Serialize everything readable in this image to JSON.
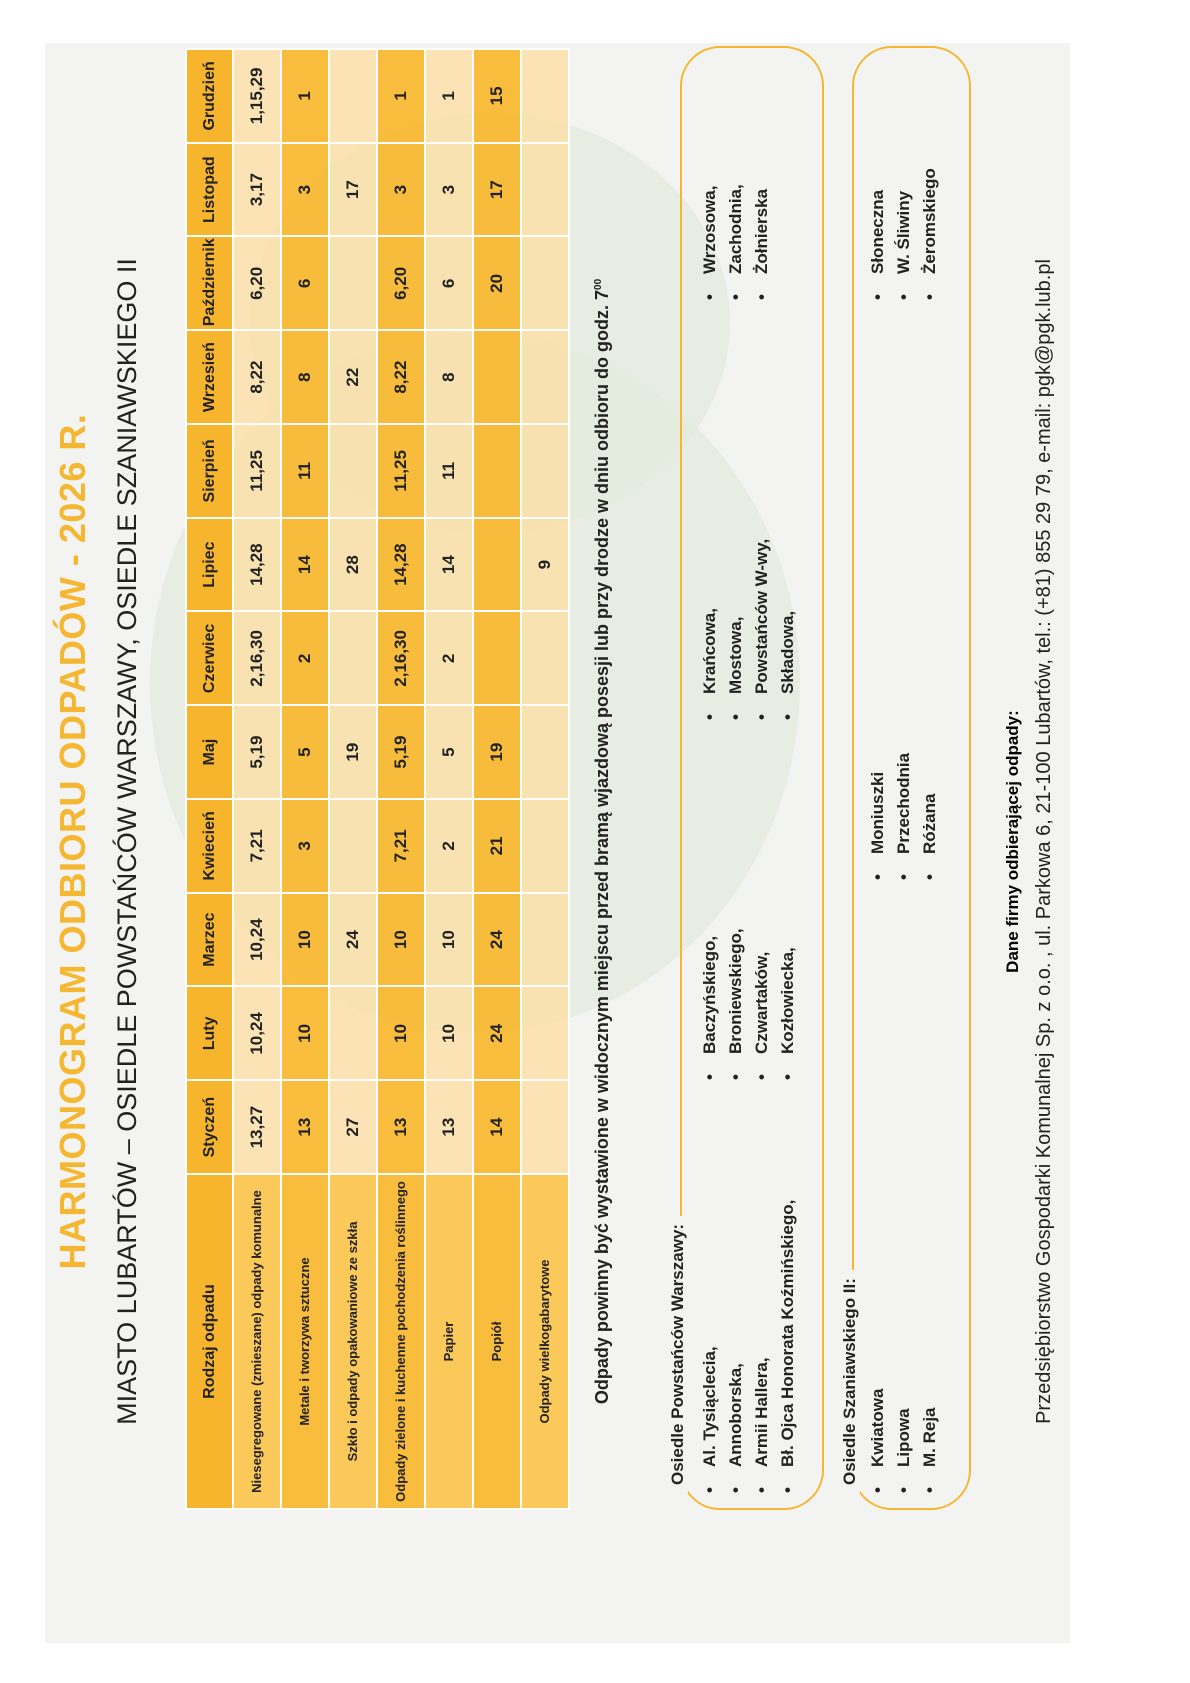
{
  "header": {
    "title": "HARMONOGRAM ODBIORU ODPADÓW - 2026 R.",
    "subtitle": "MIASTO LUBARTÓW – OSIEDLE POWSTAŃCÓW WARSZAWY, OSIEDLE SZANIAWSKIEGO II"
  },
  "table": {
    "columns": [
      "Rodzaj odpadu",
      "Styczeń",
      "Luty",
      "Marzec",
      "Kwiecień",
      "Maj",
      "Czerwiec",
      "Lipiec",
      "Sierpień",
      "Wrzesień",
      "Październik",
      "Listopad",
      "Grudzień"
    ],
    "rows": [
      [
        "Niesegregowane (zmieszane) odpady komunalne",
        "13,27",
        "10,24",
        "10,24",
        "7,21",
        "5,19",
        "2,16,30",
        "14,28",
        "11,25",
        "8,22",
        "6,20",
        "3,17",
        "1,15,29"
      ],
      [
        "Metale i tworzywa sztuczne",
        "13",
        "10",
        "10",
        "3",
        "5",
        "2",
        "14",
        "11",
        "8",
        "6",
        "3",
        "1"
      ],
      [
        "Szkło i odpady opakowaniowe ze szkła",
        "27",
        null,
        "24",
        null,
        "19",
        null,
        "28",
        null,
        "22",
        null,
        "17",
        null
      ],
      [
        "Odpady zielone i kuchenne pochodzenia roślinnego",
        "13",
        "10",
        "10",
        "7,21",
        "5,19",
        "2,16,30",
        "14,28",
        "11,25",
        "8,22",
        "6,20",
        "3",
        "1"
      ],
      [
        "Papier",
        "13",
        "10",
        "10",
        "2",
        "5",
        "2",
        "14",
        "11",
        "8",
        "6",
        "3",
        "1"
      ],
      [
        "Popiół",
        "14",
        "24",
        "24",
        "21",
        "19",
        null,
        null,
        null,
        null,
        "20",
        "17",
        "15"
      ],
      [
        "Odpady wielkogabarytowe",
        null,
        null,
        null,
        null,
        null,
        null,
        "9",
        null,
        null,
        null,
        null,
        null
      ]
    ]
  },
  "note": {
    "text": "Odpady powinny być wystawione w widocznym miejscu przed bramą wjazdową posesji lub przy drodze w dniu odbioru do godz. 7",
    "sup": "00"
  },
  "areas": [
    {
      "label": "Osiedle Powstańców Warszawy:",
      "columns": [
        [
          "Al. Tysiąclecia,",
          "Annoborska,",
          "Armii Hallera,",
          "Bł. Ojca Honorata Koźmińskiego,"
        ],
        [
          "Baczyńskiego,",
          "Broniewskiego,",
          "Czwartaków,",
          "Kozłowiecka,"
        ],
        [
          "Krańcowa,",
          "Mostowa,",
          "Powstańców W-wy,",
          "Składowa,"
        ],
        [
          "Wrzosowa,",
          "Zachodnia,",
          "Żołnierska"
        ]
      ]
    },
    {
      "label": "Osiedle Szaniawskiego II:",
      "columns": [
        [
          "Kwiatowa",
          "Lipowa",
          "M. Reja"
        ],
        [
          "Moniuszki",
          "Przechodnia",
          "Różana"
        ],
        [
          "Słoneczna",
          "W. Śliwiny",
          "Żeromskiego"
        ]
      ]
    }
  ],
  "company": {
    "label": "Dane firmy odbierającej odpady:",
    "details": "Przedsiębiorstwo Gospodarki Komunalnej Sp. z o.o. , ul. Parkowa 6, 21-100 Lubartów, tel.: (+81) 855 29 79, e-mail: pgk@pgk.lub.pl"
  }
}
